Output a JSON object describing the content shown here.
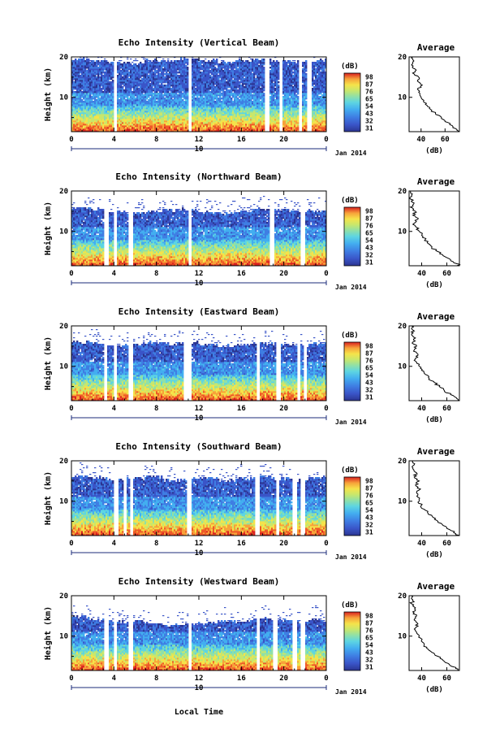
{
  "common": {
    "ylabel": "Height (km)",
    "unit_label": "(dB)",
    "profile_title": "Average",
    "profile_xlabel": "(dB)",
    "date_label": "Jan 2014",
    "day_label": "10",
    "xlabel": "Local Time",
    "x_ticks": [
      "0",
      "4",
      "8",
      "12",
      "16",
      "20",
      "0"
    ],
    "y_ticks": [
      "10",
      "20"
    ],
    "colorbar_ticks": [
      "31",
      "32",
      "43",
      "54",
      "65",
      "76",
      "87",
      "98"
    ],
    "colors": [
      "#2b3591",
      "#3a55c8",
      "#3f7ee3",
      "#43aef0",
      "#5dd5e2",
      "#8fe0a8",
      "#c8e76c",
      "#f5e34a",
      "#f7a23a",
      "#ee5a28",
      "#d92020"
    ]
  },
  "chart_data": [
    {
      "type": "heatmap",
      "title": "Echo Intensity (Vertical Beam)",
      "xlabel": "Local Time",
      "ylabel": "Height (km)",
      "xlim": [
        0,
        24
      ],
      "ylim": [
        1.5,
        20
      ],
      "gaps_hours": [
        4.1,
        11.2,
        18.4,
        19.7,
        21.6,
        22.4
      ],
      "top_km": [
        19.5,
        19.0,
        18.6,
        18.4,
        19.2,
        19.0,
        19.5,
        19.1,
        18.8,
        19.3,
        19.4,
        19.0,
        18.7,
        19.1
      ],
      "profile": {
        "title": "Average",
        "xlabel": "(dB)",
        "x_ticks": [
          "40",
          "60"
        ],
        "xlim": [
          30,
          72
        ],
        "heights": [
          1.5,
          2,
          3,
          4,
          5,
          6,
          7,
          8,
          9,
          10,
          11,
          12,
          13,
          14,
          15,
          16,
          17,
          18,
          19,
          20
        ],
        "values": [
          72,
          70,
          66,
          60,
          57,
          52,
          48,
          45,
          42,
          40,
          39,
          37,
          41,
          37,
          38,
          33,
          35,
          32,
          34,
          33
        ]
      }
    },
    {
      "type": "heatmap",
      "title": "Echo Intensity (Northward Beam)",
      "xlabel": "Local Time",
      "ylabel": "Height (km)",
      "xlim": [
        0,
        24
      ],
      "ylim": [
        1.5,
        20
      ],
      "gaps_hours": [
        3.3,
        4.1,
        5.6,
        11.2,
        18.9,
        21.8
      ],
      "top_km": [
        15.8,
        15.5,
        14.8,
        14.6,
        14.9,
        15.2,
        15.4,
        14.7,
        14.3,
        15.0,
        15.6,
        15.3,
        14.9,
        15.1
      ],
      "profile": {
        "title": "Average",
        "xlabel": "(dB)",
        "x_ticks": [
          "40",
          "60"
        ],
        "xlim": [
          30,
          70
        ],
        "heights": [
          1.5,
          2,
          3,
          4,
          5,
          6,
          7,
          8,
          9,
          10,
          11,
          12,
          13,
          14,
          15,
          16,
          17,
          18,
          19,
          20
        ],
        "values": [
          70,
          68,
          63,
          57,
          53,
          48,
          45,
          43,
          40,
          38,
          36,
          34,
          37,
          33,
          35,
          31,
          34,
          31,
          32,
          31
        ]
      }
    },
    {
      "type": "heatmap",
      "title": "Echo Intensity (Eastward Beam)",
      "xlabel": "Local Time",
      "ylabel": "Height (km)",
      "xlim": [
        0,
        24
      ],
      "ylim": [
        1.5,
        20
      ],
      "gaps_hours": [
        3.2,
        4.1,
        5.6,
        10.8,
        11.2,
        17.6,
        19.5,
        21.4,
        22.0
      ],
      "top_km": [
        16.0,
        15.7,
        15.2,
        15.5,
        15.8,
        15.6,
        15.9,
        15.3,
        15.0,
        15.4,
        15.7,
        15.5,
        15.2,
        15.6
      ],
      "profile": {
        "title": "Average",
        "xlabel": "(dB)",
        "x_ticks": [
          "40",
          "60"
        ],
        "xlim": [
          30,
          70
        ],
        "heights": [
          1.5,
          2,
          3,
          4,
          5,
          6,
          7,
          8,
          9,
          10,
          11,
          12,
          13,
          14,
          15,
          16,
          17,
          18,
          19,
          20
        ],
        "values": [
          70,
          68,
          63,
          58,
          54,
          50,
          46,
          43,
          40,
          38,
          36,
          35,
          37,
          34,
          36,
          33,
          35,
          32,
          33,
          32
        ]
      }
    },
    {
      "type": "heatmap",
      "title": "Echo Intensity (Southward Beam)",
      "xlabel": "Local Time",
      "ylabel": "Height (km)",
      "xlim": [
        0,
        24
      ],
      "ylim": [
        1.5,
        20
      ],
      "gaps_hours": [
        4.2,
        5.0,
        5.7,
        11.1,
        17.5,
        19.4,
        21.0,
        21.8
      ],
      "top_km": [
        16.2,
        15.8,
        15.4,
        15.6,
        16.0,
        15.2,
        15.5,
        15.8,
        15.1,
        15.7,
        16.1,
        15.6,
        15.3,
        15.9
      ],
      "profile": {
        "title": "Average",
        "xlabel": "(dB)",
        "x_ticks": [
          "40",
          "60"
        ],
        "xlim": [
          30,
          70
        ],
        "heights": [
          1.5,
          2,
          3,
          4,
          5,
          6,
          7,
          8,
          9,
          10,
          11,
          12,
          13,
          14,
          15,
          16,
          17,
          18,
          19,
          20
        ],
        "values": [
          70,
          67,
          62,
          57,
          53,
          49,
          45,
          42,
          40,
          38,
          37,
          36,
          39,
          35,
          38,
          34,
          36,
          33,
          34,
          33
        ]
      }
    },
    {
      "type": "heatmap",
      "title": "Echo Intensity (Westward Beam)",
      "xlabel": "Local Time",
      "ylabel": "Height (km)",
      "xlim": [
        0,
        24
      ],
      "ylim": [
        1.5,
        20
      ],
      "gaps_hours": [
        3.3,
        4.1,
        5.6,
        11.2,
        17.6,
        19.2,
        21.0,
        21.8
      ],
      "top_km": [
        14.8,
        14.0,
        13.5,
        13.8,
        13.2,
        12.9,
        13.0,
        13.3,
        13.8,
        13.6,
        14.4,
        14.1,
        13.7,
        14.0
      ],
      "profile": {
        "title": "Average",
        "xlabel": "(dB)",
        "x_ticks": [
          "40",
          "60"
        ],
        "xlim": [
          30,
          70
        ],
        "heights": [
          1.5,
          2,
          3,
          4,
          5,
          6,
          7,
          8,
          9,
          10,
          11,
          12,
          13,
          14,
          15,
          16,
          17,
          18,
          19,
          20
        ],
        "values": [
          70,
          67,
          62,
          57,
          53,
          48,
          44,
          42,
          40,
          38,
          36,
          35,
          37,
          34,
          36,
          33,
          35,
          32,
          33,
          32
        ]
      }
    }
  ]
}
